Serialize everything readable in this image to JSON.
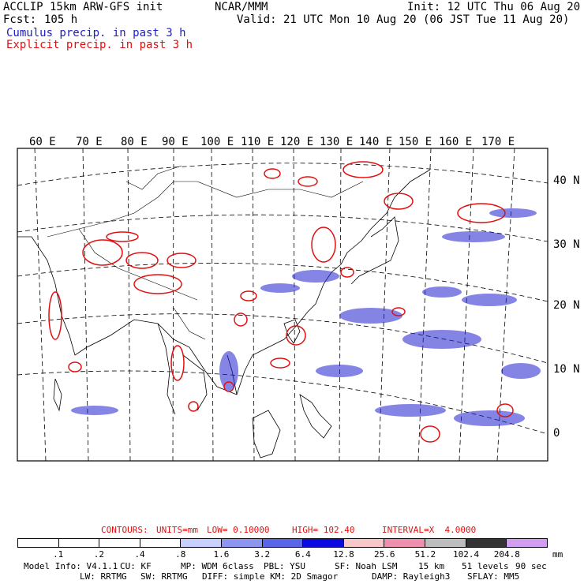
{
  "header": {
    "model": "ACCLIP 15km ARW-GFS init",
    "org": "NCAR/MMM",
    "init": "Init: 12 UTC Thu 06 Aug 20",
    "fcst_label": "Fcst:",
    "fcst_value": "105 h",
    "valid": "Valid: 21 UTC Mon 10 Aug 20 (06 JST Tue 11 Aug 20)",
    "legend_cumulus": "Cumulus precip. in past 3 h",
    "legend_explicit": "Explicit precip. in past 3 h"
  },
  "map": {
    "lon_labels": [
      "60 E",
      "70 E",
      "80 E",
      "90 E",
      "100 E",
      "110 E",
      "120 E",
      "130 E",
      "140 E",
      "150 E",
      "160 E",
      "170 E"
    ],
    "lat_labels": [
      "40 N",
      "30 N",
      "20 N",
      "10 N",
      "0"
    ],
    "colors": {
      "cumulus": "#2020d0",
      "explicit": "#e01010"
    }
  },
  "contours": {
    "label": "CONTOURS:",
    "units": "UNITS=mm",
    "low": "LOW= 0.10000",
    "high": "HIGH= 102.40",
    "interval": "INTERVAL=X  4.0000"
  },
  "colorbar": {
    "unit": "mm",
    "ticks": [
      ".1",
      ".2",
      ".4",
      ".8",
      "1.6",
      "3.2",
      "6.4",
      "12.8",
      "25.6",
      "51.2",
      "102.4",
      "204.8"
    ],
    "colors": [
      "#ffffff",
      "#ffffff",
      "#ffffff",
      "#ffffff",
      "#c8d0ff",
      "#8c96f0",
      "#5a64e8",
      "#0a0ae0",
      "#f8c8c8",
      "#f090b0",
      "#bdbdbd",
      "#333333",
      "#d09ef0"
    ]
  },
  "footer": {
    "line1": {
      "model_info": "Model Info: V4.1.1",
      "cu": "CU: KF",
      "mp": "MP: WDM 6class",
      "pbl": "PBL: YSU",
      "sf": "SF: Noah LSM",
      "res": "15 km",
      "levels": "51 levels",
      "dt": "90 sec"
    },
    "line2": {
      "lw": "LW: RRTMG",
      "sw": "SW: RRTMG",
      "diff": "DIFF: simple KM: 2D Smagor",
      "damp": "DAMP: Rayleigh3",
      "sflay": "SFLAY: MM5"
    }
  }
}
